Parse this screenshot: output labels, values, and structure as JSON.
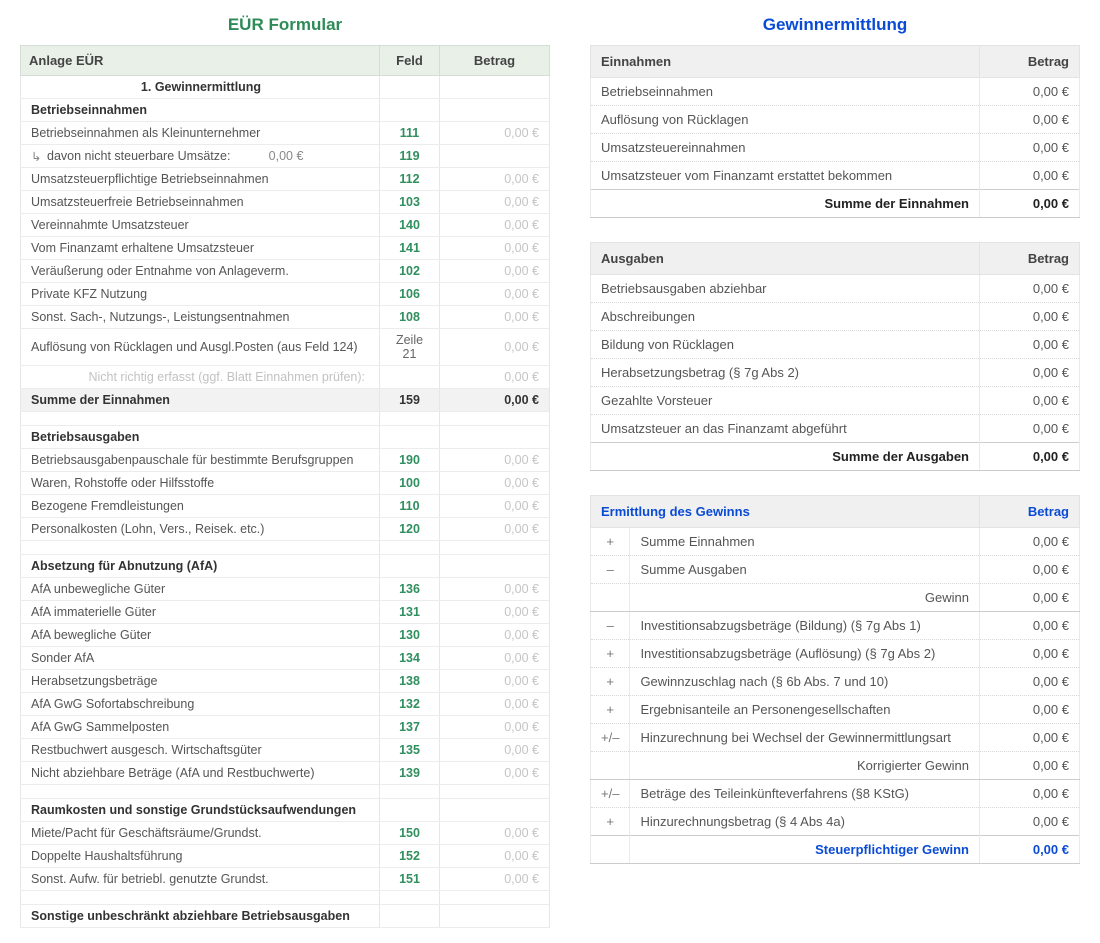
{
  "left": {
    "title": "EÜR Formular",
    "hdr": {
      "c1": "Anlage EÜR",
      "c2": "Feld",
      "c3": "Betrag"
    },
    "section1": "1. Gewinnermittlung",
    "grpEinnahmen": "Betriebseinnahmen",
    "rows1": [
      {
        "lbl": "Betriebseinnahmen als Kleinunternehmer",
        "feld": "111",
        "amt": "0,00 €"
      },
      {
        "lbl": "davon nicht steuerbare Umsätze:",
        "inline": "0,00 €",
        "feld": "119",
        "amt": "",
        "indent": true
      },
      {
        "lbl": "Umsatzsteuerpflichtige Betriebseinnahmen",
        "feld": "112",
        "amt": "0,00 €"
      },
      {
        "lbl": "Umsatzsteuerfreie Betriebseinnahmen",
        "feld": "103",
        "amt": "0,00 €"
      },
      {
        "lbl": "Vereinnahmte Umsatzsteuer",
        "feld": "140",
        "amt": "0,00 €"
      },
      {
        "lbl": "Vom Finanzamt erhaltene Umsatzsteuer",
        "feld": "141",
        "amt": "0,00 €"
      },
      {
        "lbl": "Veräußerung oder Entnahme von Anlageverm.",
        "feld": "102",
        "amt": "0,00 €"
      },
      {
        "lbl": "Private KFZ Nutzung",
        "feld": "106",
        "amt": "0,00 €"
      },
      {
        "lbl": "Sonst. Sach-, Nutzungs-, Leistungsentnahmen",
        "feld": "108",
        "amt": "0,00 €"
      },
      {
        "lbl": "Auflösung von Rücklagen und Ausgl.Posten (aus Feld 124)",
        "feld": "Zeile 21",
        "amt": "0,00 €",
        "nogreen": true
      }
    ],
    "mutedRow": {
      "lbl": "Nicht richtig erfasst (ggf. Blatt Einnahmen prüfen):",
      "amt": "0,00 €"
    },
    "sumEinn": {
      "lbl": "Summe der Einnahmen",
      "feld": "159",
      "amt": "0,00 €"
    },
    "grpAusgaben": "Betriebsausgaben",
    "rows2": [
      {
        "lbl": "Betriebsausgabenpauschale für bestimmte Berufsgruppen",
        "feld": "190",
        "amt": "0,00 €"
      },
      {
        "lbl": "Waren, Rohstoffe oder Hilfsstoffe",
        "feld": "100",
        "amt": "0,00 €"
      },
      {
        "lbl": "Bezogene Fremdleistungen",
        "feld": "110",
        "amt": "0,00 €"
      },
      {
        "lbl": "Personalkosten (Lohn, Vers., Reisek. etc.)",
        "feld": "120",
        "amt": "0,00 €"
      }
    ],
    "grpAfa": "Absetzung für Abnutzung (AfA)",
    "rows3": [
      {
        "lbl": "AfA unbewegliche Güter",
        "feld": "136",
        "amt": "0,00 €"
      },
      {
        "lbl": "AfA immaterielle Güter",
        "feld": "131",
        "amt": "0,00 €"
      },
      {
        "lbl": "AfA bewegliche Güter",
        "feld": "130",
        "amt": "0,00 €"
      },
      {
        "lbl": "Sonder AfA",
        "feld": "134",
        "amt": "0,00 €"
      },
      {
        "lbl": "Herabsetzungsbeträge",
        "feld": "138",
        "amt": "0,00 €"
      },
      {
        "lbl": "AfA GwG Sofortabschreibung",
        "feld": "132",
        "amt": "0,00 €"
      },
      {
        "lbl": "AfA GwG Sammelposten",
        "feld": "137",
        "amt": "0,00 €"
      },
      {
        "lbl": "Restbuchwert ausgesch. Wirtschaftsgüter",
        "feld": "135",
        "amt": "0,00 €"
      },
      {
        "lbl": "Nicht abziehbare Beträge (AfA und Restbuchwerte)",
        "feld": "139",
        "amt": "0,00 €"
      }
    ],
    "grpRaum": "Raumkosten und sonstige Grundstücksaufwendungen",
    "rows4": [
      {
        "lbl": "Miete/Pacht für Geschäftsräume/Grundst.",
        "feld": "150",
        "amt": "0,00 €"
      },
      {
        "lbl": "Doppelte Haushaltsführung",
        "feld": "152",
        "amt": "0,00 €"
      },
      {
        "lbl": "Sonst. Aufw. für betriebl. genutzte Grundst.",
        "feld": "151",
        "amt": "0,00 €"
      }
    ],
    "grpSonst": "Sonstige unbeschränkt abziehbare Betriebsausgaben"
  },
  "right": {
    "title": "Gewinnermittlung",
    "block1": {
      "hdr": {
        "c1": "Einnahmen",
        "c2": "Betrag"
      },
      "rows": [
        {
          "lbl": "Betriebseinnahmen",
          "amt": "0,00 €"
        },
        {
          "lbl": "Auflösung von Rücklagen",
          "amt": "0,00 €"
        },
        {
          "lbl": "Umsatzsteuereinnahmen",
          "amt": "0,00 €"
        },
        {
          "lbl": "Umsatzsteuer vom Finanzamt erstattet bekommen",
          "amt": "0,00 €"
        }
      ],
      "sum": {
        "lbl": "Summe der Einnahmen",
        "amt": "0,00 €"
      }
    },
    "block2": {
      "hdr": {
        "c1": "Ausgaben",
        "c2": "Betrag"
      },
      "rows": [
        {
          "lbl": "Betriebsausgaben abziehbar",
          "amt": "0,00 €"
        },
        {
          "lbl": "Abschreibungen",
          "amt": "0,00 €"
        },
        {
          "lbl": "Bildung von Rücklagen",
          "amt": "0,00 €"
        },
        {
          "lbl": "Herabsetzungsbetrag (§ 7g Abs 2)",
          "amt": "0,00 €"
        },
        {
          "lbl": "Gezahlte Vorsteuer",
          "amt": "0,00 €"
        },
        {
          "lbl": "Umsatzsteuer an das Finanzamt abgeführt",
          "amt": "0,00 €"
        }
      ],
      "sum": {
        "lbl": "Summe der Ausgaben",
        "amt": "0,00 €"
      }
    },
    "block3": {
      "hdr": {
        "c1": "Ermittlung des Gewinns",
        "c2": "Betrag"
      },
      "rows": [
        {
          "sign": "+",
          "lbl": "Summe Einnahmen",
          "amt": "0,00 €"
        },
        {
          "sign": "–",
          "lbl": "Summe Ausgaben",
          "amt": "0,00 €"
        },
        {
          "sub": true,
          "lbl": "Gewinn",
          "amt": "0,00 €"
        },
        {
          "sign": "–",
          "lbl": "Investitionsabzugsbeträge (Bildung) (§ 7g Abs 1)",
          "amt": "0,00 €"
        },
        {
          "sign": "+",
          "lbl": "Investitionsabzugsbeträge (Auflösung) (§ 7g Abs 2)",
          "amt": "0,00 €"
        },
        {
          "sign": "+",
          "lbl": "Gewinnzuschlag nach (§ 6b Abs. 7 und 10)",
          "amt": "0,00 €"
        },
        {
          "sign": "+",
          "lbl": "Ergebnisanteile an Personengesellschaften",
          "amt": "0,00 €"
        },
        {
          "sign": "+/–",
          "lbl": "Hinzurechnung bei Wechsel der Gewinnermittlungsart",
          "amt": "0,00 €"
        },
        {
          "sub": true,
          "lbl": "Korrigierter Gewinn",
          "amt": "0,00 €"
        },
        {
          "sign": "+/–",
          "lbl": "Beträge des Teileinkünfteverfahrens (§8 KStG)",
          "amt": "0,00 €"
        },
        {
          "sign": "+",
          "lbl": "Hinzurechnungsbetrag (§ 4 Abs 4a)",
          "amt": "0,00 €"
        }
      ],
      "final": {
        "lbl": "Steuerpflichtiger Gewinn",
        "amt": "0,00 €"
      }
    }
  }
}
